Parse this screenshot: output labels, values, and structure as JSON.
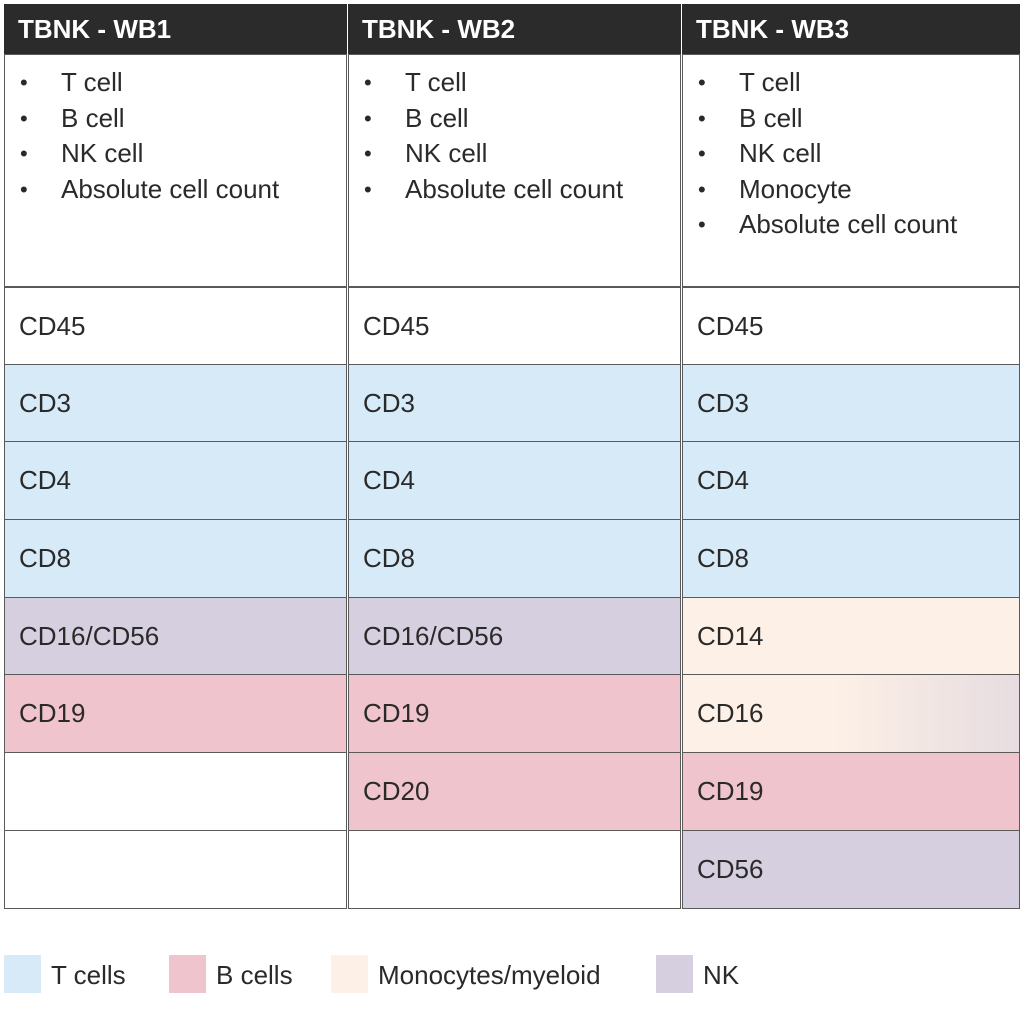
{
  "columns": [
    {
      "title": "TBNK - WB1",
      "items": [
        "T cell",
        "B cell",
        "NK cell",
        "Absolute cell count"
      ],
      "markers": [
        "CD45",
        "CD3",
        "CD4",
        "CD8",
        "CD16/CD56",
        "CD19",
        "",
        ""
      ]
    },
    {
      "title": "TBNK - WB2",
      "items": [
        "T cell",
        "B cell",
        "NK cell",
        "Absolute cell count"
      ],
      "markers": [
        "CD45",
        "CD3",
        "CD4",
        "CD8",
        "CD16/CD56",
        "CD19",
        "CD20",
        ""
      ]
    },
    {
      "title": "TBNK - WB3",
      "items": [
        "T cell",
        "B cell",
        "NK cell",
        "Monocyte",
        "Absolute cell count"
      ],
      "markers": [
        "CD45",
        "CD3",
        "CD4",
        "CD8",
        "CD14",
        "CD16",
        "CD19",
        "CD56"
      ]
    }
  ],
  "bullet": "•",
  "legend": [
    {
      "label": "T cells",
      "color": "#d6eaf8"
    },
    {
      "label": "B cells",
      "color": "#f0c4cc"
    },
    {
      "label": "Monocytes/myeloid",
      "color": "#fdf0e6"
    },
    {
      "label": "NK",
      "color": "#d6cfe0"
    }
  ],
  "colors": {
    "header_bg": "#2b2b2b",
    "t_cells": "#d6eaf8",
    "b_cells": "#f0c4cc",
    "monocytes_myeloid": "#fdf0e6",
    "nk": "#d6cfe0"
  }
}
